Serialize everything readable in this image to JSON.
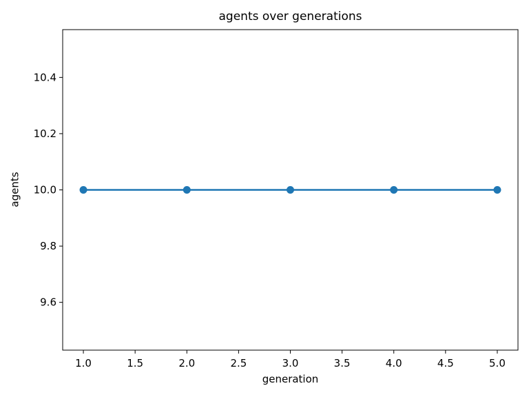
{
  "figure": {
    "background": "#ffffff"
  },
  "chart_data": {
    "type": "line",
    "title": "agents over generations",
    "xlabel": "generation",
    "ylabel": "agents",
    "x": [
      1,
      2,
      3,
      4,
      5
    ],
    "series": [
      {
        "name": "agents",
        "values": [
          10,
          10,
          10,
          10,
          10
        ]
      }
    ],
    "xlim": [
      0.8,
      5.2
    ],
    "ylim": [
      9.43,
      10.57
    ],
    "xticks": [
      1.0,
      1.5,
      2.0,
      2.5,
      3.0,
      3.5,
      4.0,
      4.5,
      5.0
    ],
    "yticks": [
      9.6,
      9.8,
      10.0,
      10.2,
      10.4
    ],
    "tick_decimals": 1,
    "grid": false,
    "legend_position": "none",
    "line_color": "#1f77b4",
    "marker": "circle",
    "marker_color": "#1f77b4",
    "axis_color": "#000000",
    "line_width": 2.5,
    "marker_radius": 5.5
  }
}
